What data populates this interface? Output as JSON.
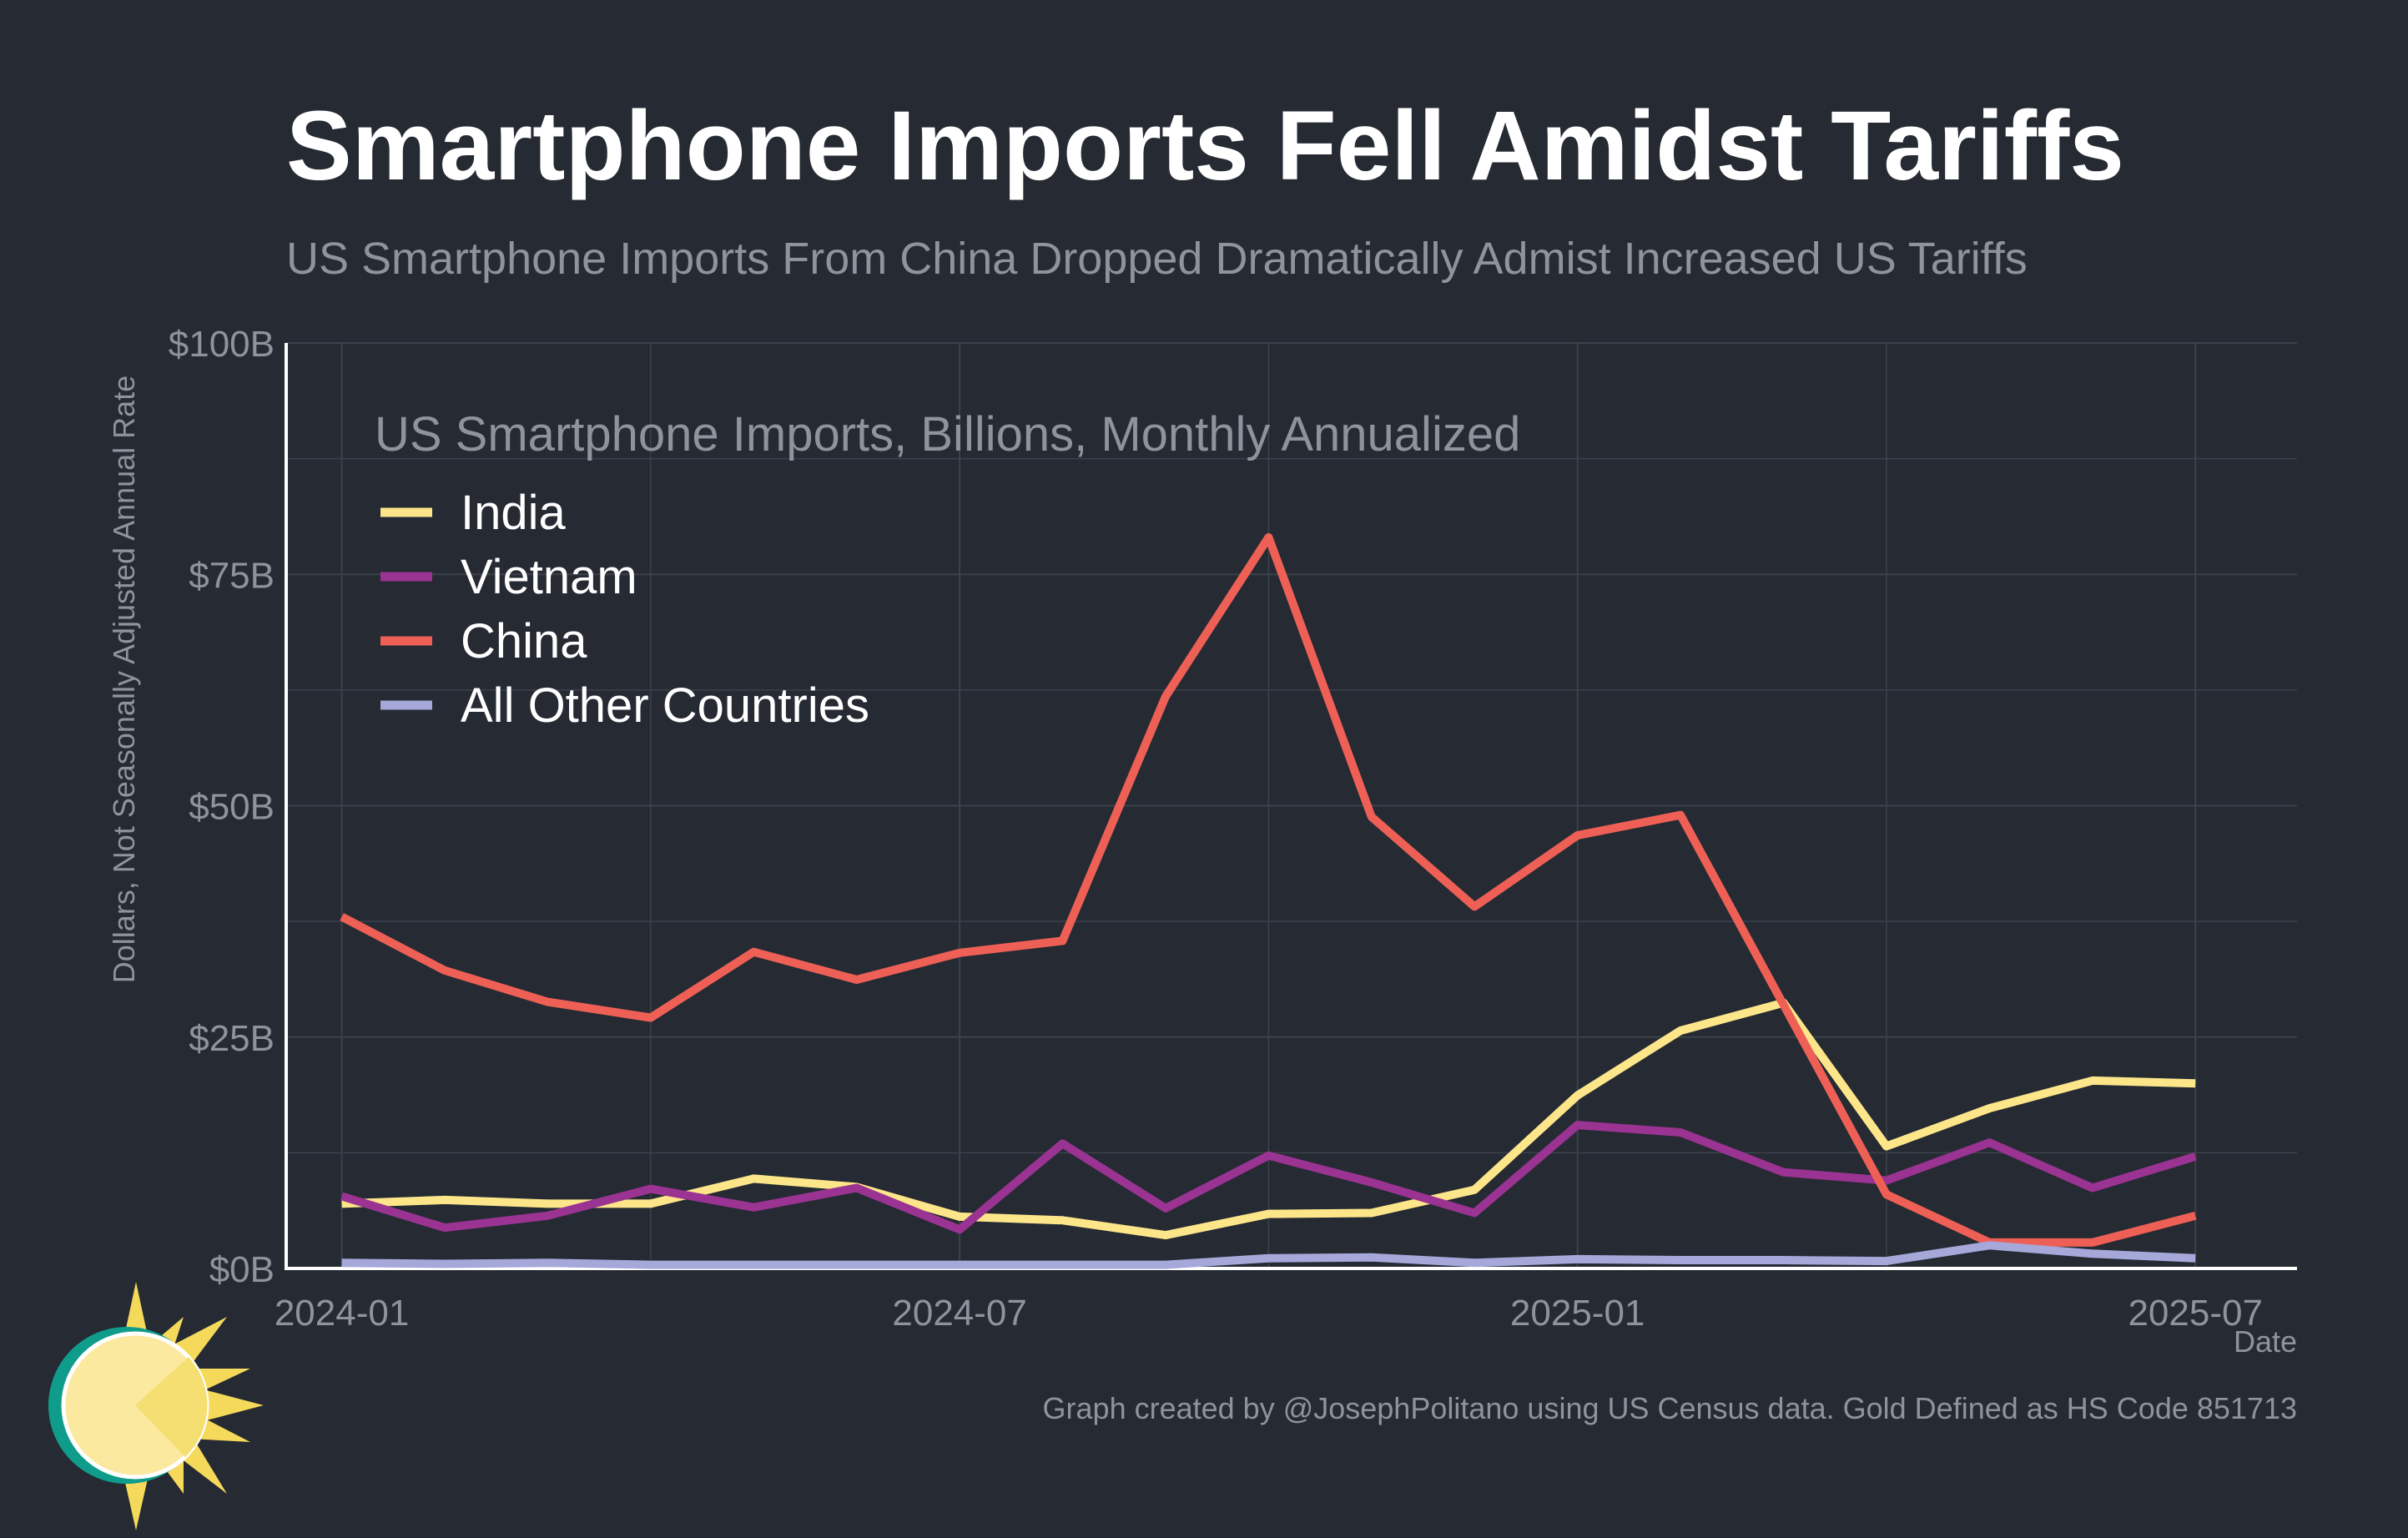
{
  "title": "Smartphone Imports Fell Amidst Tariffs",
  "subtitle": "US Smartphone Imports From China Dropped Dramatically Admist Increased US Tariffs",
  "footer": "Graph created by @JosephPolitano using US Census data. Gold Defined as HS Code 851713",
  "colors": {
    "background": "#252a33",
    "grid": "#3c414b",
    "axis": "#ffffff",
    "title": "#ffffff",
    "muted": "#8e939c",
    "legend_text": "#ffffff"
  },
  "logo": {
    "icon": "sun-icon"
  },
  "chart_data": {
    "type": "line",
    "legend_title": "US Smartphone Imports, Billions, Monthly Annualized",
    "legend_position": "top-left",
    "xlabel": "Date",
    "ylabel": "Dollars, Not Seasonally Adjusted Annual Rate",
    "x": [
      "2024-01",
      "2024-02",
      "2024-03",
      "2024-04",
      "2024-05",
      "2024-06",
      "2024-07",
      "2024-08",
      "2024-09",
      "2024-10",
      "2024-11",
      "2024-12",
      "2025-01",
      "2025-02",
      "2025-03",
      "2025-04",
      "2025-05",
      "2025-06",
      "2025-07"
    ],
    "xlim": [
      "2023-12-15",
      "2025-07-31"
    ],
    "x_ticks": [
      {
        "value": "2024-01",
        "label": "2024-01"
      },
      {
        "value": "2024-07",
        "label": "2024-07"
      },
      {
        "value": "2025-01",
        "label": "2025-01"
      },
      {
        "value": "2025-07",
        "label": "2025-07"
      }
    ],
    "ylim": [
      0,
      100
    ],
    "y_ticks": [
      {
        "value": 0,
        "label": "$0B"
      },
      {
        "value": 25,
        "label": "$25B"
      },
      {
        "value": 50,
        "label": "$50B"
      },
      {
        "value": 75,
        "label": "$75B"
      },
      {
        "value": 100,
        "label": "$100B"
      }
    ],
    "grid": true,
    "series": [
      {
        "name": "India",
        "color": "#fde68a",
        "values": [
          7.0,
          7.4,
          7.0,
          7.0,
          9.7,
          8.8,
          5.6,
          5.2,
          3.6,
          5.9,
          6.0,
          8.5,
          18.7,
          25.7,
          28.7,
          13.2,
          17.3,
          20.3,
          20.0
        ]
      },
      {
        "name": "Vietnam",
        "color": "#9a3392",
        "values": [
          7.8,
          4.4,
          5.7,
          8.6,
          6.6,
          8.7,
          4.2,
          13.5,
          6.5,
          12.2,
          9.3,
          6.0,
          15.5,
          14.7,
          10.4,
          9.5,
          13.6,
          8.7,
          12.1
        ]
      },
      {
        "name": "China",
        "color": "#ee6055",
        "values": [
          38.0,
          32.2,
          28.8,
          27.1,
          34.2,
          31.2,
          34.1,
          35.4,
          61.8,
          79.0,
          48.8,
          39.1,
          46.8,
          49.0,
          28.5,
          8.0,
          2.8,
          2.8,
          5.7
        ]
      },
      {
        "name": "All Other Countries",
        "color": "#a5a8d9",
        "values": [
          0.6,
          0.5,
          0.6,
          0.4,
          0.4,
          0.4,
          0.4,
          0.4,
          0.4,
          1.1,
          1.2,
          0.6,
          1.0,
          0.9,
          0.9,
          0.8,
          2.5,
          1.6,
          1.1
        ]
      }
    ]
  }
}
